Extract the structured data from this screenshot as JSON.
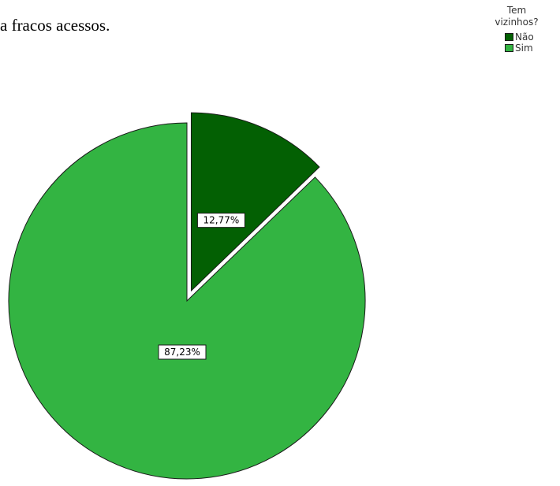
{
  "document": {
    "text_fragment": "a fracos acessos."
  },
  "legend": {
    "title_line1": "Tem",
    "title_line2": "vizinhos?",
    "items": [
      {
        "label": "Não",
        "color": "#036003"
      },
      {
        "label": "Sim",
        "color": "#33b442"
      }
    ]
  },
  "chart_data": {
    "type": "pie",
    "title": "",
    "legend_title": "Tem vizinhos?",
    "legend_position": "top-right",
    "slices": [
      {
        "label": "Não",
        "value": 12.77,
        "display": "12,77%",
        "color": "#036003",
        "exploded": true
      },
      {
        "label": "Sim",
        "value": 87.23,
        "display": "87,23%",
        "color": "#33b442",
        "exploded": false
      }
    ],
    "start_angle": "12 o'clock, clockwise"
  }
}
